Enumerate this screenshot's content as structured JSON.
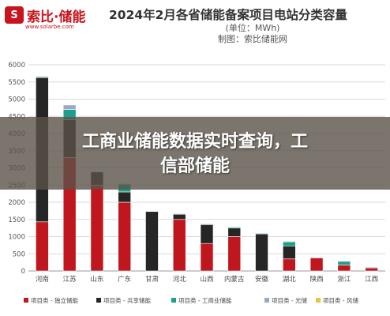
{
  "logo": {
    "brand_text": "索比·储能",
    "brand_mark": "S",
    "url": "www.solarbe.com"
  },
  "overlay": {
    "line1": "工商业储能数据实时查询，工",
    "line2": "信部储能"
  },
  "colors": {
    "独立储能": "#c0161e",
    "共享储能": "#262626",
    "工商业储能": "#1e9e8c",
    "光储": "#9aa8c8",
    "风储": "#e6c44a"
  },
  "chart_data": {
    "type": "bar",
    "stacked": true,
    "title": "2024年2月各省储能备案项目电站分类容量",
    "subtitle_lines": [
      "(单位：MWh)",
      "制图：索比储能网"
    ],
    "categories": [
      "河南",
      "江苏",
      "山东",
      "广东",
      "甘肃",
      "河北",
      "山西",
      "内蒙古",
      "安徽",
      "湖北",
      "陕西",
      "浙江",
      "江西"
    ],
    "ylim": [
      0,
      6000
    ],
    "yticks": [
      0,
      500,
      1000,
      1500,
      2000,
      2500,
      3000,
      3500,
      4000,
      4500,
      5000,
      5500,
      6000
    ],
    "grid": true,
    "legend_position": "bottom",
    "series": [
      {
        "name": "项目类 - 独立储能",
        "key": "独立储能",
        "values": [
          1430,
          3300,
          2500,
          2000,
          0,
          1500,
          800,
          1000,
          0,
          350,
          380,
          170,
          90
        ]
      },
      {
        "name": "项目类 - 共享储能",
        "key": "共享储能",
        "values": [
          4200,
          1100,
          380,
          300,
          1730,
          150,
          550,
          250,
          1080,
          380,
          0,
          0,
          0
        ]
      },
      {
        "name": "项目类 - 工商业储能",
        "key": "工商业储能",
        "values": [
          20,
          300,
          20,
          230,
          0,
          20,
          20,
          30,
          20,
          120,
          0,
          110,
          20
        ]
      },
      {
        "name": "项目类 - 光储",
        "key": "光储",
        "values": [
          20,
          130,
          10,
          20,
          0,
          10,
          10,
          10,
          0,
          20,
          0,
          20,
          0
        ]
      },
      {
        "name": "项目类 - 风储",
        "key": "风储",
        "values": [
          0,
          0,
          0,
          0,
          0,
          0,
          0,
          0,
          0,
          0,
          0,
          0,
          0
        ]
      }
    ]
  }
}
